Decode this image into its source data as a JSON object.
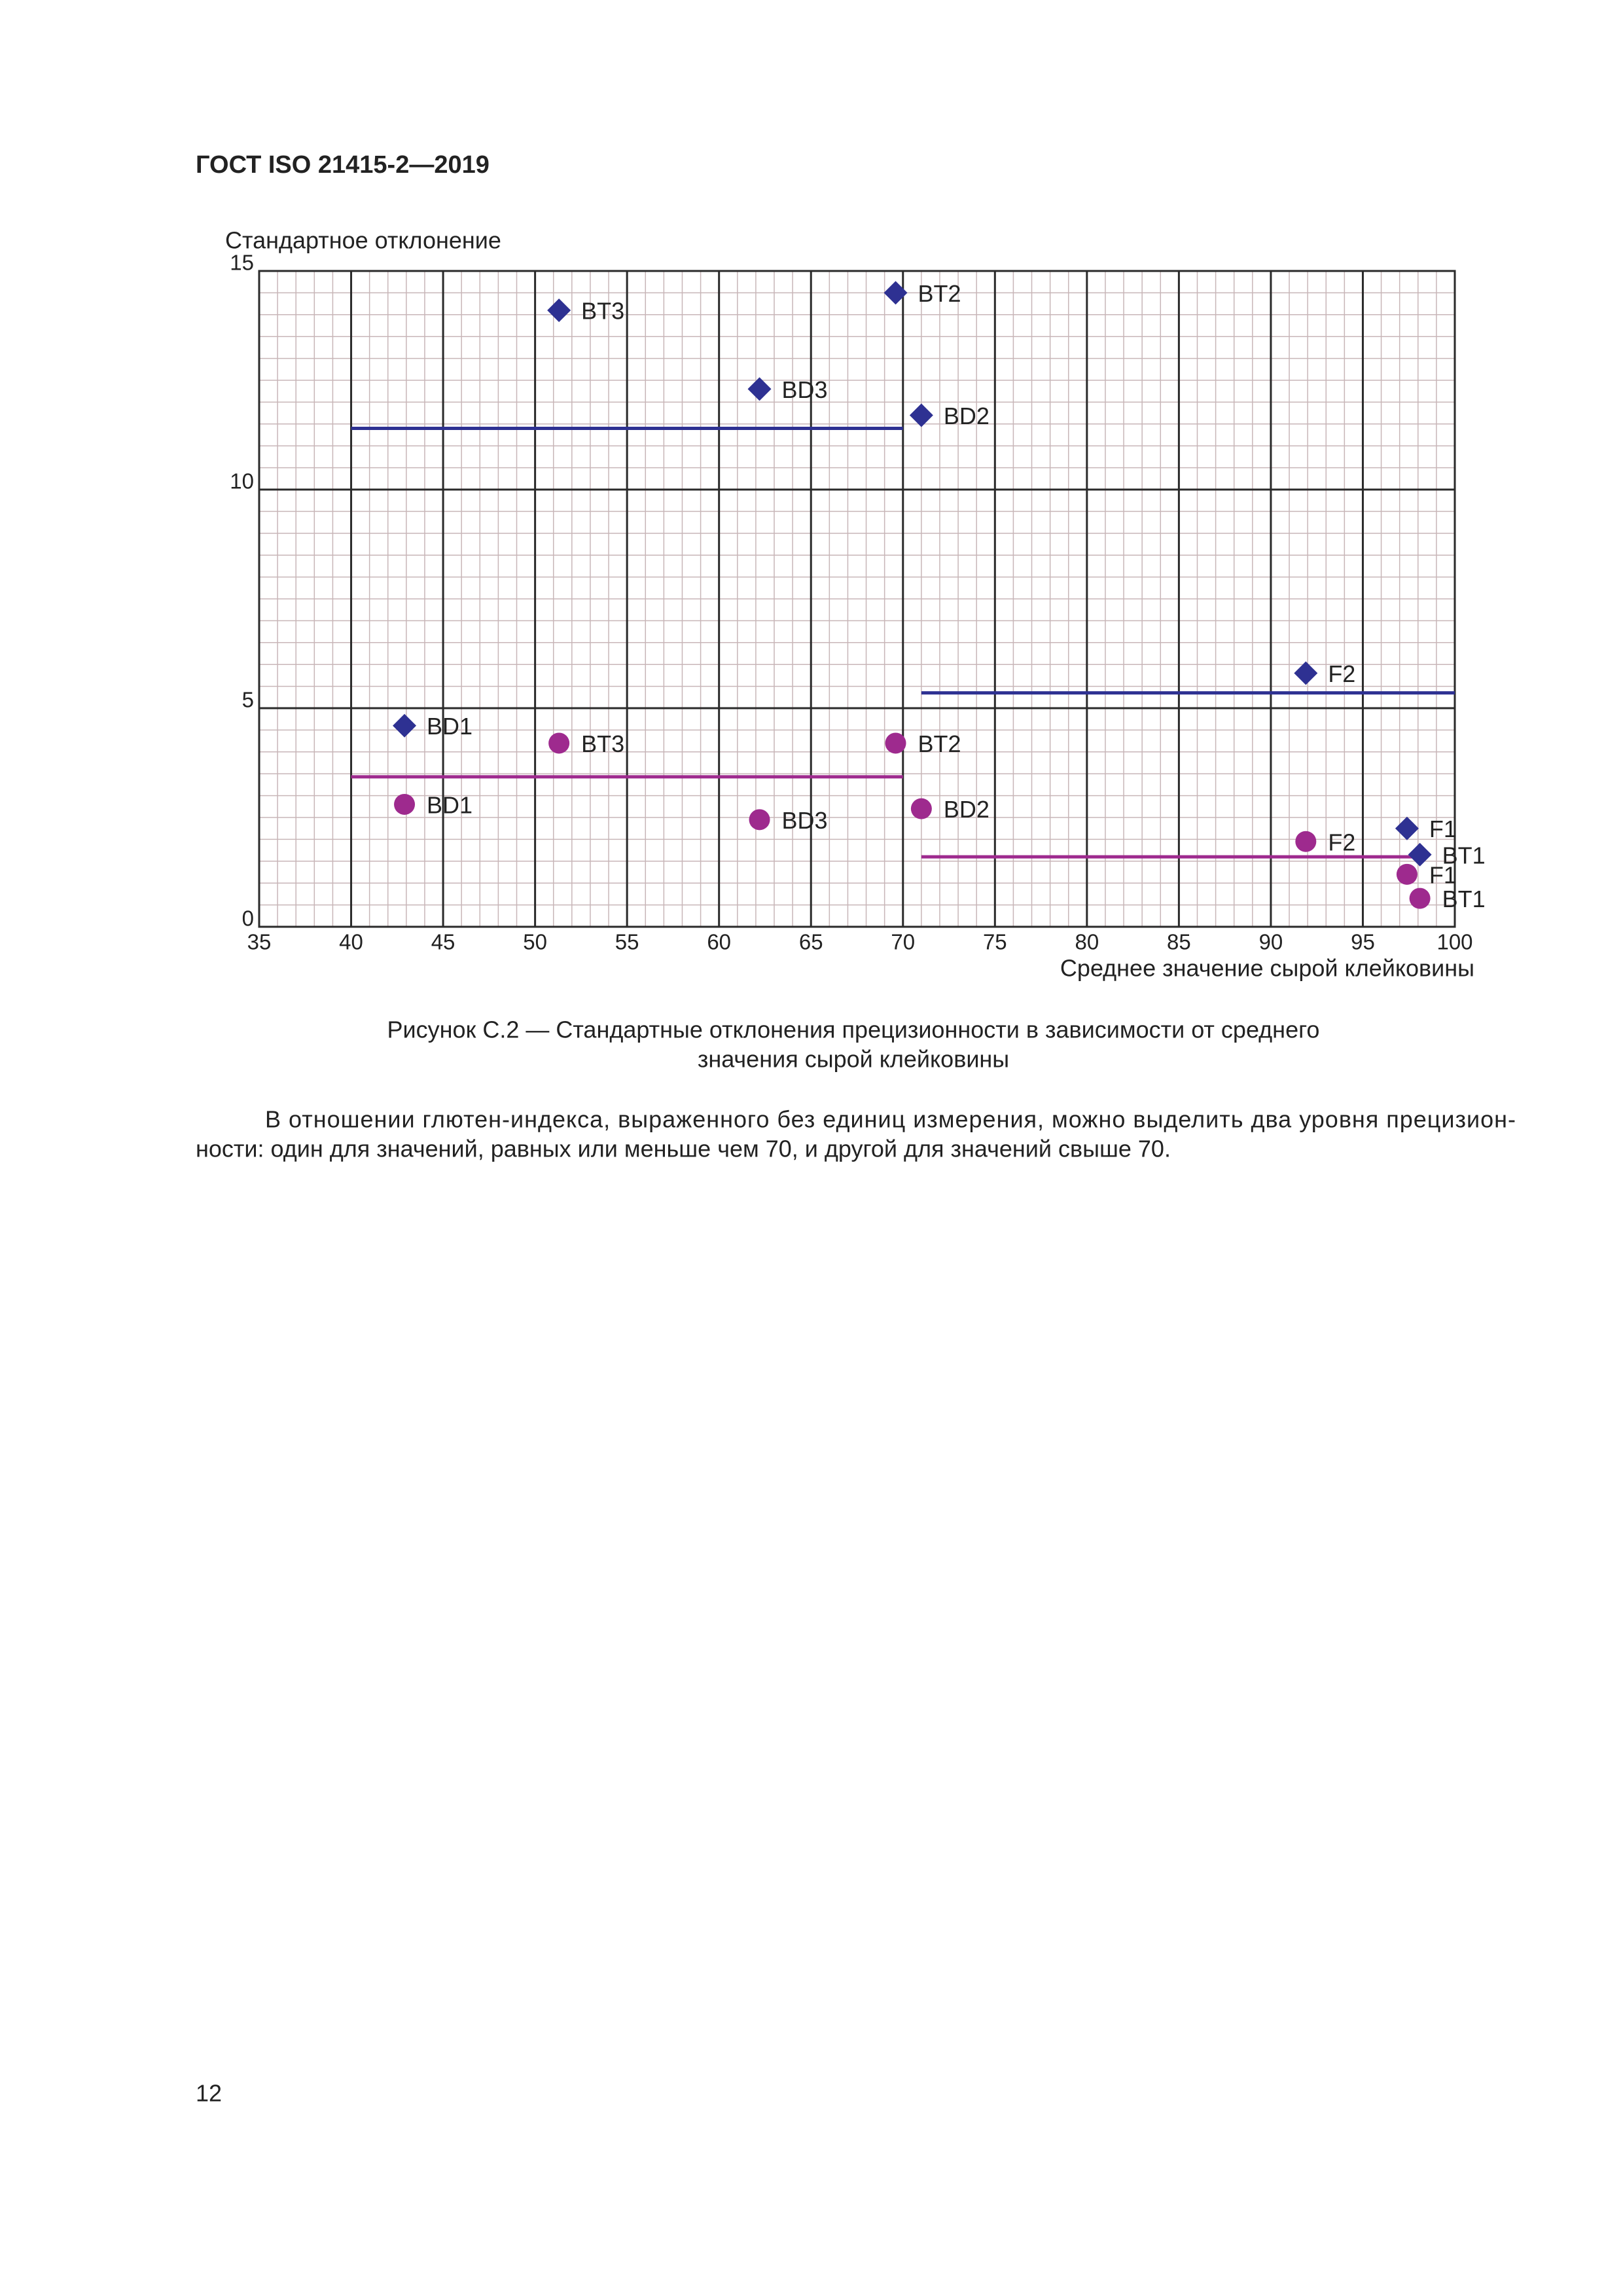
{
  "header": {
    "title": "ГОСТ ISO 21415-2—2019"
  },
  "chart_data": {
    "type": "scatter",
    "y_label": "Стандартное отклонение",
    "x_label": "Среднее значение сырой клейковины",
    "xlim": [
      35,
      100
    ],
    "ylim": [
      0,
      15
    ],
    "xticks": [
      35,
      40,
      45,
      50,
      55,
      60,
      65,
      70,
      75,
      80,
      85,
      90,
      95,
      100
    ],
    "yticks": [
      0,
      5,
      10,
      15
    ],
    "grid": true,
    "minor_grid": {
      "x": 1,
      "y": 0.5
    },
    "series": [
      {
        "marker": "diamond",
        "color": "#2e3192",
        "labels": [
          "BT3",
          "BT2",
          "BD3",
          "BD2",
          "F2",
          "BD1",
          "F1",
          "BT1"
        ],
        "x": [
          51.3,
          69.6,
          62.2,
          71.0,
          91.9,
          42.9,
          97.4,
          98.1
        ],
        "values": [
          14.1,
          14.5,
          12.3,
          11.7,
          5.8,
          4.6,
          2.25,
          1.65
        ]
      },
      {
        "marker": "circle",
        "color": "#9e2a8e",
        "labels": [
          "BT3",
          "BT2",
          "BD1",
          "BD3",
          "BD2",
          "F2",
          "F1",
          "BT1"
        ],
        "x": [
          51.3,
          69.6,
          42.9,
          62.2,
          71.0,
          91.9,
          97.4,
          98.1
        ],
        "values": [
          4.2,
          4.2,
          2.8,
          2.45,
          2.7,
          1.95,
          1.2,
          0.65
        ]
      }
    ],
    "reference_lines": [
      {
        "color": "#2e3192",
        "x": [
          40,
          70
        ],
        "values": [
          11.4,
          11.4
        ]
      },
      {
        "color": "#2e3192",
        "x": [
          71,
          100
        ],
        "values": [
          5.35,
          5.35
        ]
      },
      {
        "color": "#9e2a8e",
        "x": [
          40,
          70
        ],
        "values": [
          3.43,
          3.43
        ]
      },
      {
        "color": "#9e2a8e",
        "x": [
          71,
          98
        ],
        "values": [
          1.6,
          1.6
        ]
      }
    ]
  },
  "caption": {
    "lines": [
      "Рисунок С.2 — Стандартные отклонения прецизионности в зависимости от среднего",
      "значения сырой клейковины"
    ]
  },
  "paragraph": {
    "lines": [
      "В отношении глютен-индекса, выраженного без единиц измерения, можно выделить два уровня прецизион-",
      "ности: один для значений, равных или меньше чем 70, и другой для значений свыше 70."
    ]
  },
  "footer": {
    "page_number": "12"
  }
}
